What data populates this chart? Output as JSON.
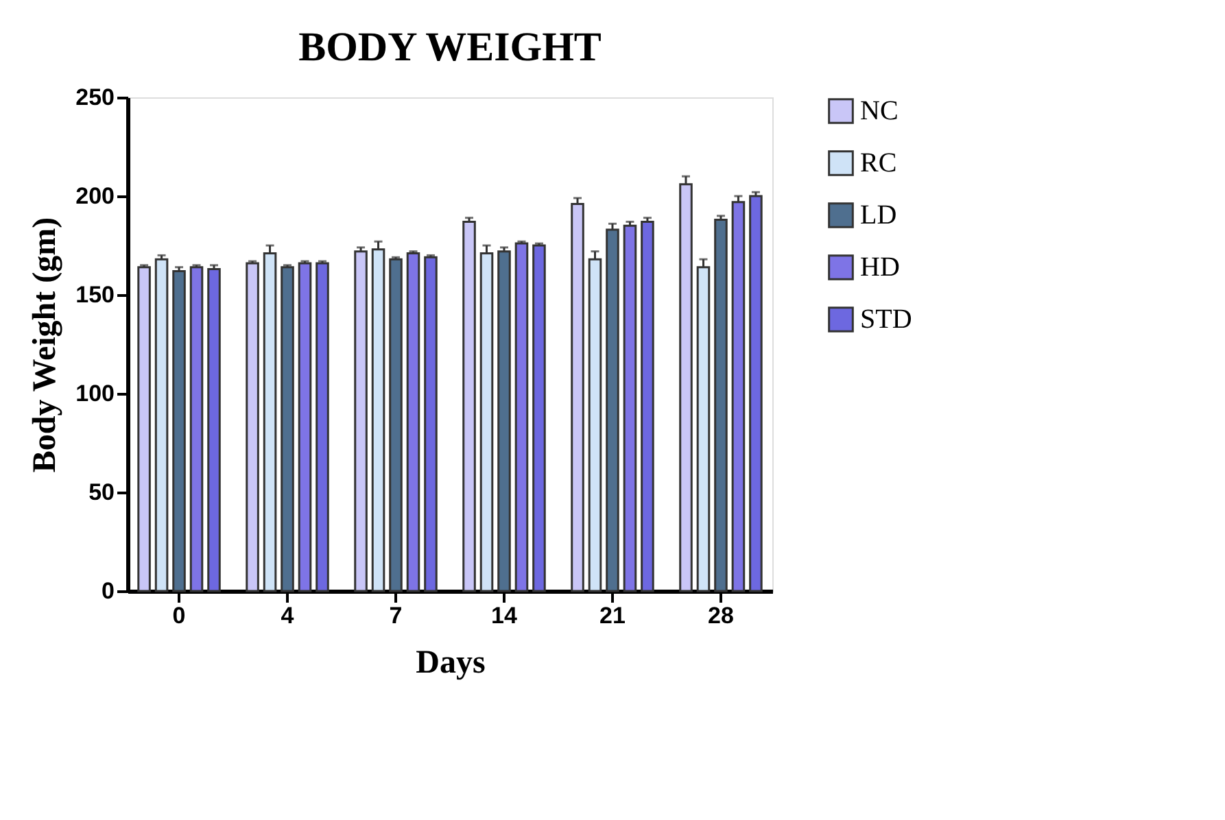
{
  "chart_data": {
    "type": "bar",
    "title": "BODY WEIGHT",
    "xlabel": "Days",
    "ylabel": "Body Weight (gm)",
    "categories": [
      "0",
      "4",
      "7",
      "14",
      "21",
      "28"
    ],
    "series": [
      {
        "name": "NC",
        "color": "#c9c6f7",
        "values": [
          164,
          166,
          172,
          187,
          196,
          206
        ],
        "errors": [
          1,
          1,
          2,
          2,
          3,
          4
        ]
      },
      {
        "name": "RC",
        "color": "#cfe3f7",
        "values": [
          168,
          171,
          173,
          171,
          168,
          164
        ],
        "errors": [
          2,
          4,
          4,
          4,
          4,
          4
        ]
      },
      {
        "name": "LD",
        "color": "#4f6f8f",
        "values": [
          162,
          164,
          168,
          172,
          183,
          188
        ],
        "errors": [
          2,
          1,
          1,
          2,
          3,
          2
        ]
      },
      {
        "name": "HD",
        "color": "#7e74e6",
        "values": [
          164,
          166,
          171,
          176,
          185,
          197
        ],
        "errors": [
          1,
          1,
          1,
          1,
          2,
          3
        ]
      },
      {
        "name": "STD",
        "color": "#6d68e0",
        "values": [
          163,
          166,
          169,
          175,
          187,
          200
        ],
        "errors": [
          2,
          1,
          1,
          1,
          2,
          2
        ]
      }
    ],
    "ylim": [
      0,
      250
    ],
    "yticks": [
      0,
      50,
      100,
      150,
      200,
      250
    ],
    "grid": false,
    "legend": "right"
  }
}
